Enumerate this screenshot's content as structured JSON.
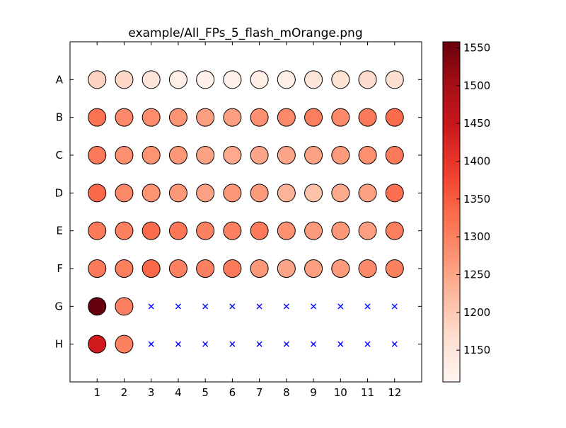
{
  "chart_data": {
    "type": "heatmap",
    "title": "example/All_FPs_5_flash_mOrange.png",
    "x_ticks": [
      "1",
      "2",
      "3",
      "4",
      "5",
      "6",
      "7",
      "8",
      "9",
      "10",
      "11",
      "12"
    ],
    "y_ticks": [
      "A",
      "B",
      "C",
      "D",
      "E",
      "F",
      "G",
      "H"
    ],
    "colorbar": {
      "colormap": "Reds",
      "vmin": 1108,
      "vmax": 1558,
      "ticks": [
        1150,
        1200,
        1250,
        1300,
        1350,
        1400,
        1450,
        1500,
        1550
      ],
      "tick_labels": [
        "1150",
        "1200",
        "1250",
        "1300",
        "1350",
        "1400",
        "1450",
        "1500",
        "1550"
      ]
    },
    "missing_marker": "x",
    "missing_color": "#0000ff",
    "values": [
      [
        1185,
        1180,
        1150,
        1125,
        1122,
        1122,
        1128,
        1125,
        1150,
        1160,
        1170,
        1165
      ],
      [
        1320,
        1290,
        1285,
        1275,
        1260,
        1260,
        1280,
        1290,
        1305,
        1290,
        1310,
        1330
      ],
      [
        1310,
        1280,
        1275,
        1270,
        1255,
        1245,
        1250,
        1250,
        1255,
        1265,
        1280,
        1310
      ],
      [
        1335,
        1290,
        1275,
        1270,
        1255,
        1270,
        1265,
        1230,
        1210,
        1245,
        1255,
        1325
      ],
      [
        1310,
        1300,
        1330,
        1315,
        1300,
        1300,
        1310,
        1280,
        1265,
        1270,
        1260,
        1305
      ],
      [
        1310,
        1305,
        1335,
        1300,
        1300,
        1310,
        1270,
        1250,
        1260,
        1265,
        1290,
        1300
      ],
      [
        1558,
        1300,
        null,
        null,
        null,
        null,
        null,
        null,
        null,
        null,
        null,
        null
      ],
      [
        1440,
        1300,
        null,
        null,
        null,
        null,
        null,
        null,
        null,
        null,
        null,
        null
      ]
    ]
  }
}
